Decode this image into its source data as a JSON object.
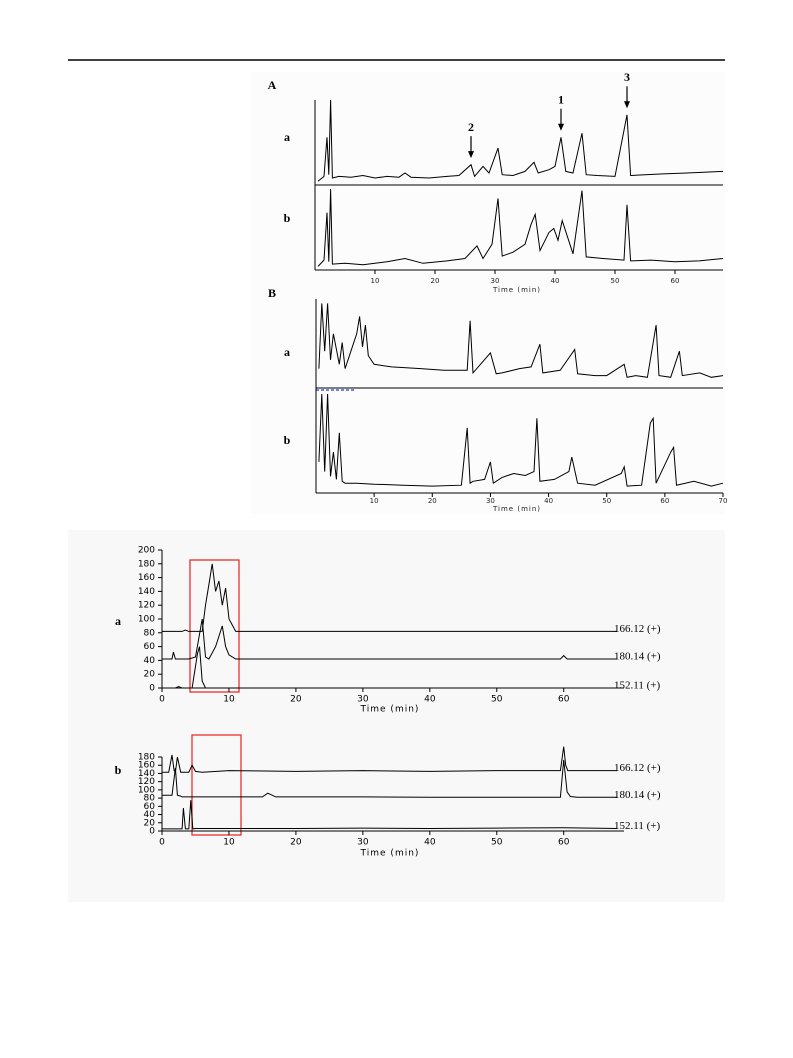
{
  "chart_data": [
    {
      "type": "line",
      "label": "A",
      "xlabel": "Time (min)",
      "color": "#000000",
      "xlim": [
        0,
        68
      ],
      "xticks": [
        10,
        20,
        30,
        40,
        50,
        60
      ],
      "ylim": [
        0,
        100
      ],
      "series": [
        {
          "name": "a",
          "x": [
            0.5,
            1.5,
            2,
            2.3,
            2.6,
            2.9,
            4,
            6,
            8,
            10,
            12,
            14,
            15,
            16,
            19,
            22,
            24,
            26,
            26.6,
            28,
            29,
            30.5,
            31.2,
            33,
            35,
            36.5,
            37.2,
            39,
            40,
            41,
            41.8,
            43,
            44.5,
            45.2,
            47,
            50,
            52,
            52.6,
            55,
            58,
            62,
            68
          ],
          "values": [
            2,
            8,
            55,
            10,
            100,
            6,
            8,
            7,
            9,
            6,
            8,
            7,
            12,
            7,
            6,
            8,
            9,
            22,
            8,
            20,
            12,
            42,
            10,
            9,
            14,
            25,
            12,
            16,
            20,
            55,
            14,
            12,
            60,
            10,
            9,
            8,
            82,
            9,
            10,
            11,
            12,
            14
          ]
        },
        {
          "name": "b",
          "x": [
            0.5,
            1.5,
            2,
            2.3,
            2.6,
            2.9,
            5,
            8,
            12,
            15,
            18,
            22,
            25,
            27,
            28,
            29.5,
            30.5,
            31.2,
            33,
            35,
            36,
            36.7,
            37.5,
            39,
            39.8,
            40.5,
            41.2,
            43,
            44.5,
            45.2,
            48,
            51.5,
            52,
            52.6,
            56,
            60,
            64,
            68
          ],
          "values": [
            2,
            10,
            70,
            8,
            100,
            5,
            6,
            4,
            8,
            12,
            6,
            9,
            12,
            28,
            12,
            30,
            88,
            15,
            20,
            30,
            55,
            68,
            22,
            45,
            50,
            35,
            60,
            18,
            98,
            14,
            12,
            10,
            80,
            9,
            10,
            8,
            9,
            12
          ]
        }
      ],
      "annotations": [
        {
          "text": "2",
          "x": 26,
          "y": 30
        },
        {
          "text": "1",
          "x": 41,
          "y": 63
        },
        {
          "text": "3",
          "x": 52,
          "y": 90
        }
      ]
    },
    {
      "type": "line",
      "label": "B",
      "xlabel": "Time (min)",
      "color": "#000000",
      "xlim": [
        0,
        70
      ],
      "xticks": [
        10,
        20,
        30,
        40,
        50,
        60,
        70
      ],
      "ylim": [
        0,
        100
      ],
      "series": [
        {
          "name": "a",
          "x": [
            0.5,
            1,
            1.5,
            2,
            2.5,
            3,
            4,
            4.5,
            5,
            6,
            7,
            7.5,
            8,
            8.5,
            9,
            10,
            13,
            18,
            22,
            26,
            26.5,
            27,
            30,
            31,
            32,
            35,
            37,
            38.5,
            39,
            42,
            44.5,
            45,
            48,
            50,
            53,
            53.5,
            55,
            57,
            58.5,
            59,
            61,
            62.5,
            63,
            66,
            68,
            70
          ],
          "values": [
            20,
            95,
            40,
            95,
            30,
            60,
            25,
            50,
            20,
            40,
            60,
            80,
            45,
            70,
            35,
            25,
            22,
            20,
            18,
            18,
            75,
            15,
            38,
            14,
            15,
            20,
            22,
            48,
            15,
            18,
            42,
            14,
            12,
            12,
            25,
            10,
            12,
            10,
            70,
            12,
            10,
            40,
            12,
            15,
            10,
            12
          ]
        },
        {
          "name": "b",
          "x": [
            0.5,
            1,
            1.5,
            2,
            2.5,
            3,
            3.5,
            4,
            4.5,
            5,
            7,
            10,
            15,
            20,
            25,
            26,
            26.5,
            27,
            29,
            30,
            30.5,
            32,
            34,
            36,
            37.5,
            38,
            38.5,
            41,
            43.5,
            44,
            45,
            48,
            52.5,
            53,
            53.5,
            56,
            57.5,
            58,
            58.5,
            61,
            61.5,
            62,
            65,
            68,
            70
          ],
          "values": [
            30,
            100,
            20,
            100,
            15,
            40,
            12,
            60,
            10,
            8,
            8,
            7,
            6,
            5,
            6,
            65,
            8,
            10,
            12,
            30,
            8,
            14,
            18,
            16,
            20,
            75,
            10,
            12,
            20,
            35,
            8,
            6,
            18,
            25,
            5,
            6,
            70,
            75,
            8,
            40,
            45,
            6,
            10,
            5,
            8
          ]
        }
      ]
    },
    {
      "type": "line",
      "label": "a",
      "xlabel": "Time (min)",
      "color": "#000000",
      "xlim": [
        0,
        69
      ],
      "xticks": [
        0,
        10,
        20,
        30,
        40,
        50,
        60
      ],
      "ylim": [
        0,
        200
      ],
      "yticks": [
        0,
        20,
        40,
        60,
        80,
        100,
        120,
        140,
        160,
        180,
        200
      ],
      "series": [
        {
          "name": "166.12 (+)",
          "x": [
            0,
            1,
            3,
            3.5,
            4,
            6,
            6.5,
            7,
            7.5,
            8,
            8.5,
            9,
            9.5,
            10,
            11,
            20,
            40,
            60,
            68
          ],
          "values": [
            82,
            82,
            82,
            84,
            82,
            82,
            120,
            150,
            180,
            140,
            155,
            120,
            145,
            100,
            82,
            82,
            82,
            82,
            82
          ]
        },
        {
          "name": "180.14 (+)",
          "x": [
            0,
            1.5,
            1.7,
            2,
            4,
            5,
            6,
            6.5,
            7,
            8,
            9,
            9.5,
            10,
            11,
            20,
            59.5,
            60,
            60.5,
            68
          ],
          "values": [
            42,
            42,
            52,
            42,
            42,
            45,
            100,
            45,
            42,
            60,
            90,
            60,
            48,
            42,
            42,
            42,
            47,
            42,
            42
          ]
        },
        {
          "name": "152.11 (+)",
          "x": [
            0,
            2,
            2.5,
            3,
            4.5,
            5.3,
            5.6,
            6,
            6.5,
            8,
            20,
            68
          ],
          "values": [
            0,
            0,
            2,
            0,
            0,
            50,
            60,
            10,
            0,
            0,
            0,
            0
          ]
        }
      ]
    },
    {
      "type": "line",
      "label": "b",
      "xlabel": "Time (min)",
      "color": "#000000",
      "xlim": [
        0,
        69
      ],
      "xticks": [
        0,
        10,
        20,
        30,
        40,
        50,
        60
      ],
      "ylim": [
        0,
        180
      ],
      "yticks": [
        0,
        20,
        40,
        60,
        80,
        100,
        120,
        140,
        160,
        180
      ],
      "series": [
        {
          "name": "166.12 (+)",
          "x": [
            0,
            1,
            1.5,
            1.8,
            2,
            2.3,
            2.8,
            3,
            4,
            4.5,
            5,
            6,
            10,
            20,
            30,
            40,
            50,
            59.5,
            60,
            60.3,
            60.6,
            61,
            68
          ],
          "values": [
            143,
            143,
            185,
            147,
            143,
            180,
            143,
            143,
            143,
            160,
            145,
            143,
            147,
            145,
            147,
            145,
            147,
            147,
            205,
            160,
            147,
            147,
            147
          ]
        },
        {
          "name": "180.14 (+)",
          "x": [
            0,
            1.5,
            2,
            2.3,
            2.8,
            3,
            4,
            6,
            10,
            15,
            15.8,
            17,
            20,
            30,
            40,
            50,
            59.5,
            60,
            60.5,
            61,
            62,
            68
          ],
          "values": [
            87,
            87,
            153,
            87,
            85,
            83,
            83,
            83,
            83,
            83,
            92,
            83,
            83,
            83,
            82,
            82,
            82,
            173,
            95,
            84,
            82,
            82
          ]
        },
        {
          "name": "152.11 (+)",
          "x": [
            0,
            2,
            3,
            3.2,
            3.5,
            4,
            4.3,
            4.6,
            5,
            10,
            20,
            30,
            40,
            50,
            60,
            68
          ],
          "values": [
            5,
            5,
            5,
            56,
            5,
            5,
            75,
            5,
            6,
            6,
            6,
            7,
            6,
            7,
            8,
            6
          ]
        }
      ]
    }
  ]
}
